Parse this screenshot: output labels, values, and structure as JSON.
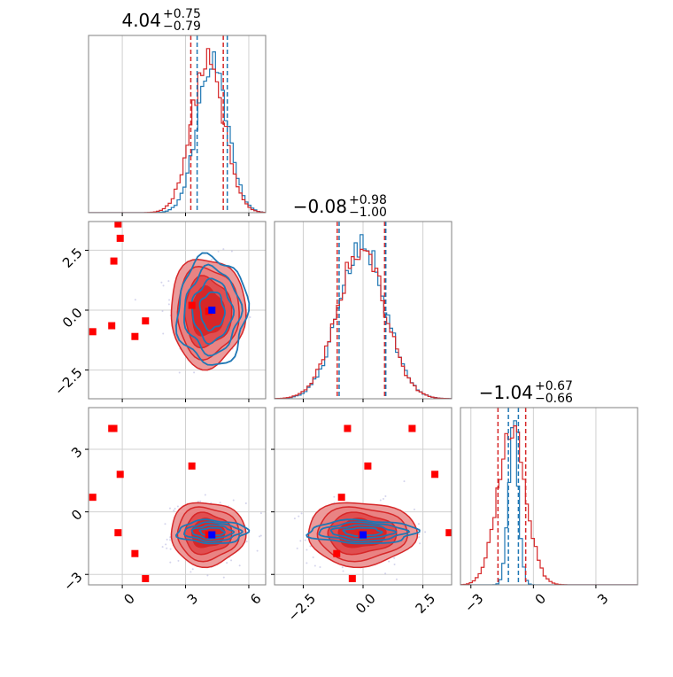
{
  "chart_data": {
    "type": "corner",
    "parameters": [
      {
        "title_main": "4.04",
        "title_plus": "+0.75",
        "title_minus": "−0.79",
        "median": 4.04,
        "q_low": 3.25,
        "q_high": 4.79,
        "range": [
          -1.6,
          6.8
        ]
      },
      {
        "title_main": "−0.08",
        "title_plus": "+0.98",
        "title_minus": "−1.00",
        "median": -0.08,
        "q_low": -1.08,
        "q_high": 0.9,
        "range": [
          -3.7,
          3.7
        ]
      },
      {
        "title_main": "−1.04",
        "title_plus": "+0.67",
        "title_minus": "−0.66",
        "median": -1.04,
        "q_low": -1.7,
        "q_high": -0.37,
        "range": [
          -3.5,
          5.0
        ]
      }
    ],
    "ticks": {
      "p0": {
        "values": [
          0,
          3,
          6
        ],
        "labels": [
          "0",
          "3",
          "6"
        ]
      },
      "p1": {
        "values": [
          -2.5,
          0,
          2.5
        ],
        "labels": [
          "−2.5",
          "0.0",
          "2.5"
        ]
      },
      "p2": {
        "values": [
          -3,
          0,
          3
        ],
        "labels": [
          "−3",
          "0",
          "3"
        ]
      }
    },
    "series": [
      {
        "name": "",
        "color": "#d62728",
        "style": "filled contours + step histogram, wide"
      },
      {
        "name": "",
        "color": "#1f77b4",
        "style": "line contours + step histogram"
      }
    ],
    "blue_quantile_lines": {
      "p0": [
        3.55,
        4.98
      ],
      "p1": [
        -1.0,
        0.95
      ],
      "p2": [
        -1.2,
        -0.72
      ]
    },
    "red_markers": [
      {
        "p0": -1.4,
        "p1": -0.9,
        "p2": 0.7
      },
      {
        "p0": -0.5,
        "p1": -0.65,
        "p2": 4.0
      },
      {
        "p0": -0.4,
        "p1": 2.05,
        "p2": 4.0
      },
      {
        "p0": -0.1,
        "p1": 3.0,
        "p2": 1.8
      },
      {
        "p0": -0.2,
        "p1": 3.6,
        "p2": -1.0
      },
      {
        "p0": 0.6,
        "p1": -1.1,
        "p2": -2.0
      },
      {
        "p0": 1.1,
        "p1": -0.45,
        "p2": -3.2
      },
      {
        "p0": 3.3,
        "p1": 0.2,
        "p2": 2.2
      },
      {
        "p0": 4.1,
        "p1": -0.05,
        "p2": -1.1
      }
    ],
    "truth_marker": {
      "color": "#0000ff",
      "p0": 4.25,
      "p1": 0.0,
      "p2": -1.1
    },
    "grid": true
  }
}
